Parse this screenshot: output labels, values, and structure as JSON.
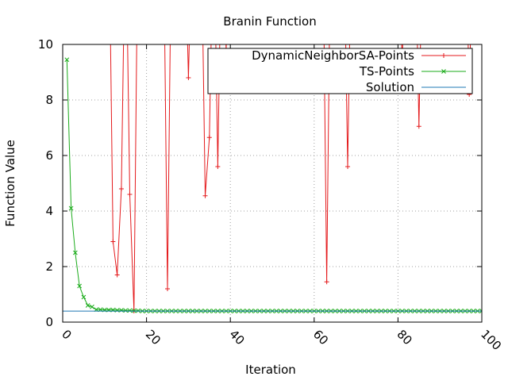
{
  "chart_data": {
    "type": "line",
    "title": "Branin Function",
    "xlabel": "Iteration",
    "ylabel": "Function Value",
    "xlim": [
      0,
      100
    ],
    "ylim": [
      0,
      10
    ],
    "grid": true,
    "legend_position": "top-right",
    "x_ticks": [
      {
        "value": 0,
        "label": "0"
      },
      {
        "value": 20,
        "label": "20"
      },
      {
        "value": 40,
        "label": "40"
      },
      {
        "value": 60,
        "label": "60"
      },
      {
        "value": 80,
        "label": "80"
      },
      {
        "value": 100,
        "label": "100"
      }
    ],
    "y_ticks": [
      {
        "value": 0,
        "label": "0"
      },
      {
        "value": 2,
        "label": "2"
      },
      {
        "value": 4,
        "label": "4"
      },
      {
        "value": 6,
        "label": "6"
      },
      {
        "value": 8,
        "label": "8"
      },
      {
        "value": 10,
        "label": "10"
      }
    ],
    "series": [
      {
        "name": "DynamicNeighborSA-Points",
        "color": "#e41a1c",
        "marker": "plus",
        "points": [
          [
            11,
            15
          ],
          [
            12,
            2.9
          ],
          [
            13,
            1.7
          ],
          [
            14,
            4.8
          ],
          [
            15,
            15
          ],
          [
            16,
            4.6
          ],
          [
            17,
            0.4
          ],
          [
            18,
            15
          ],
          [
            24,
            15
          ],
          [
            25,
            1.2
          ],
          [
            26,
            15
          ],
          [
            29,
            15
          ],
          [
            30,
            8.8
          ],
          [
            31,
            15
          ],
          [
            33,
            15
          ],
          [
            34,
            4.55
          ],
          [
            35,
            6.65
          ],
          [
            36,
            15
          ],
          [
            37,
            5.6
          ],
          [
            38,
            15
          ],
          [
            39,
            9.8
          ],
          [
            40,
            15
          ],
          [
            62,
            15
          ],
          [
            63,
            1.45
          ],
          [
            64,
            15
          ],
          [
            67,
            15
          ],
          [
            68,
            5.6
          ],
          [
            69,
            15
          ],
          [
            80,
            15
          ],
          [
            81,
            9.3
          ],
          [
            82,
            15
          ],
          [
            84,
            15
          ],
          [
            85,
            7.05
          ],
          [
            86,
            15
          ],
          [
            96,
            15
          ],
          [
            97,
            8.2
          ],
          [
            98,
            15
          ]
        ]
      },
      {
        "name": "TS-Points",
        "color": "#1aab1a",
        "marker": "cross",
        "points": [
          [
            1,
            9.45
          ],
          [
            2,
            4.1
          ],
          [
            3,
            2.5
          ],
          [
            4,
            1.3
          ],
          [
            5,
            0.9
          ],
          [
            6,
            0.6
          ],
          [
            7,
            0.55
          ],
          [
            8,
            0.45
          ],
          [
            9,
            0.45
          ],
          [
            10,
            0.44
          ],
          [
            11,
            0.44
          ],
          [
            12,
            0.44
          ],
          [
            13,
            0.43
          ],
          [
            14,
            0.43
          ],
          [
            15,
            0.42
          ],
          [
            16,
            0.42
          ],
          [
            17,
            0.41
          ],
          [
            18,
            0.41
          ],
          [
            19,
            0.4
          ],
          [
            20,
            0.4
          ],
          [
            21,
            0.4
          ],
          [
            22,
            0.4
          ],
          [
            23,
            0.4
          ],
          [
            24,
            0.4
          ],
          [
            25,
            0.4
          ],
          [
            26,
            0.4
          ],
          [
            27,
            0.4
          ],
          [
            28,
            0.4
          ],
          [
            29,
            0.4
          ],
          [
            30,
            0.4
          ],
          [
            31,
            0.4
          ],
          [
            32,
            0.4
          ],
          [
            33,
            0.4
          ],
          [
            34,
            0.4
          ],
          [
            35,
            0.4
          ],
          [
            36,
            0.4
          ],
          [
            37,
            0.4
          ],
          [
            38,
            0.4
          ],
          [
            39,
            0.4
          ],
          [
            40,
            0.4
          ],
          [
            41,
            0.4
          ],
          [
            42,
            0.4
          ],
          [
            43,
            0.4
          ],
          [
            44,
            0.4
          ],
          [
            45,
            0.4
          ],
          [
            46,
            0.4
          ],
          [
            47,
            0.4
          ],
          [
            48,
            0.4
          ],
          [
            49,
            0.4
          ],
          [
            50,
            0.4
          ],
          [
            51,
            0.4
          ],
          [
            52,
            0.4
          ],
          [
            53,
            0.4
          ],
          [
            54,
            0.4
          ],
          [
            55,
            0.4
          ],
          [
            56,
            0.4
          ],
          [
            57,
            0.4
          ],
          [
            58,
            0.4
          ],
          [
            59,
            0.4
          ],
          [
            60,
            0.4
          ],
          [
            61,
            0.4
          ],
          [
            62,
            0.4
          ],
          [
            63,
            0.4
          ],
          [
            64,
            0.4
          ],
          [
            65,
            0.4
          ],
          [
            66,
            0.4
          ],
          [
            67,
            0.4
          ],
          [
            68,
            0.4
          ],
          [
            69,
            0.4
          ],
          [
            70,
            0.4
          ],
          [
            71,
            0.4
          ],
          [
            72,
            0.4
          ],
          [
            73,
            0.4
          ],
          [
            74,
            0.4
          ],
          [
            75,
            0.4
          ],
          [
            76,
            0.4
          ],
          [
            77,
            0.4
          ],
          [
            78,
            0.4
          ],
          [
            79,
            0.4
          ],
          [
            80,
            0.4
          ],
          [
            81,
            0.4
          ],
          [
            82,
            0.4
          ],
          [
            83,
            0.4
          ],
          [
            84,
            0.4
          ],
          [
            85,
            0.4
          ],
          [
            86,
            0.4
          ],
          [
            87,
            0.4
          ],
          [
            88,
            0.4
          ],
          [
            89,
            0.4
          ],
          [
            90,
            0.4
          ],
          [
            91,
            0.4
          ],
          [
            92,
            0.4
          ],
          [
            93,
            0.4
          ],
          [
            94,
            0.4
          ],
          [
            95,
            0.4
          ],
          [
            96,
            0.4
          ],
          [
            97,
            0.4
          ],
          [
            98,
            0.4
          ],
          [
            99,
            0.4
          ],
          [
            100,
            0.4
          ]
        ]
      },
      {
        "name": "Solution",
        "color": "#1f78b4",
        "marker": "none",
        "points": [
          [
            0,
            0.398
          ],
          [
            100,
            0.398
          ]
        ]
      }
    ]
  }
}
